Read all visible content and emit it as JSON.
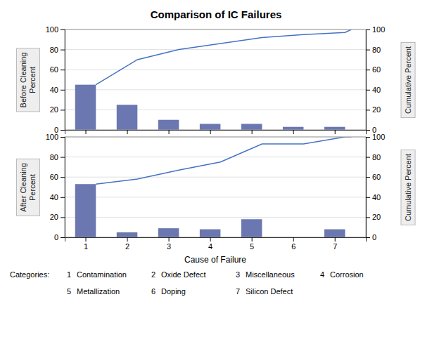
{
  "chart_data": [
    {
      "type": "bar",
      "title": "Comparison of IC Failures",
      "ylabel": "Before Cleaning\nPercent",
      "y2label": "Cumulative Percent",
      "x": [
        1,
        2,
        3,
        4,
        5,
        6,
        7
      ],
      "xlim": [
        0.5,
        7.75
      ],
      "xticks": [
        1,
        2,
        3,
        4,
        5,
        6,
        7
      ],
      "ylim": [
        0,
        100
      ],
      "yticks": [
        0,
        20,
        40,
        60,
        80,
        100
      ],
      "y2lim": [
        0,
        100
      ],
      "y2ticks": [
        0,
        20,
        40,
        60,
        80,
        100
      ],
      "grid": true,
      "tick_labels": "y",
      "series": [
        {
          "type": "bar",
          "color": "#6b77b0",
          "values": [
            45,
            25,
            10,
            6,
            6,
            3,
            3
          ]
        },
        {
          "type": "line",
          "axis": "y2",
          "color": "#4472c4",
          "x": [
            1.25,
            2.25,
            3.25,
            4.25,
            5.25,
            6.25,
            7.25,
            7.4
          ],
          "values": [
            45,
            70,
            80,
            86,
            92,
            95,
            97,
            100
          ]
        }
      ]
    },
    {
      "type": "bar",
      "xlabel": "Cause of Failure",
      "ylabel": "After Cleaning\nPercent",
      "y2label": "Cumulative Percent",
      "x": [
        1,
        2,
        3,
        4,
        5,
        6,
        7
      ],
      "xlim": [
        0.5,
        7.75
      ],
      "xticks": [
        1,
        2,
        3,
        4,
        5,
        6,
        7
      ],
      "ylim": [
        0,
        100
      ],
      "yticks": [
        0,
        20,
        40,
        60,
        80,
        100
      ],
      "y2lim": [
        0,
        100
      ],
      "y2ticks": [
        0,
        20,
        40,
        60,
        80,
        100
      ],
      "grid": true,
      "series": [
        {
          "type": "bar",
          "color": "#6b77b0",
          "values": [
            53,
            5,
            9,
            8,
            18,
            0,
            8
          ]
        },
        {
          "type": "line",
          "axis": "y2",
          "color": "#4472c4",
          "x": [
            1.25,
            2.25,
            3.25,
            4.25,
            5.25,
            6.25,
            7.25,
            7.4
          ],
          "values": [
            53,
            58,
            67,
            75,
            93,
            93,
            100,
            100
          ]
        }
      ],
      "annotations": [
        "Categories:",
        "1",
        "Contamination",
        "2",
        "Oxide Defect",
        "3",
        "Miscellaneous",
        "4",
        "Corrosion",
        "5",
        "Metallization",
        "6",
        "Doping",
        "7",
        "Silicon Defect"
      ]
    }
  ]
}
